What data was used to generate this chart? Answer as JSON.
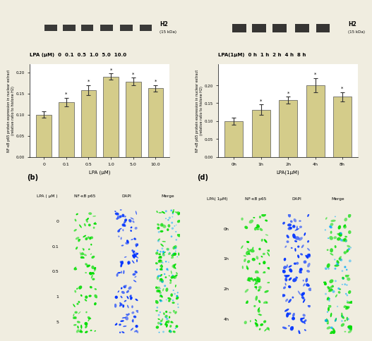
{
  "left_bar": {
    "categories": [
      "0",
      "0.1",
      "0.5",
      "1.0",
      "5.0",
      "10.0"
    ],
    "values": [
      0.1,
      0.13,
      0.158,
      0.19,
      0.178,
      0.162
    ],
    "errors": [
      0.008,
      0.01,
      0.012,
      0.007,
      0.009,
      0.008
    ],
    "bar_color": "#d4cc8a",
    "xlabel": "LPA (μM)",
    "ylabel": "NF-κB p65 protein expression in nuclear extract\n(relative ratio to histone H2)",
    "ylim": [
      0.0,
      0.22
    ],
    "yticks": [
      0.0,
      0.05,
      0.1,
      0.15,
      0.2
    ],
    "star_indices": [
      1,
      2,
      3,
      4,
      5
    ]
  },
  "right_bar": {
    "categories": [
      "0h",
      "1h",
      "2h",
      "4h",
      "8h"
    ],
    "values": [
      0.1,
      0.132,
      0.158,
      0.2,
      0.168
    ],
    "errors": [
      0.01,
      0.014,
      0.01,
      0.02,
      0.013
    ],
    "bar_color": "#d4cc8a",
    "xlabel": "LPA(1μM)",
    "ylabel": "NF-κB p65 protein expression in nuclear extract\n(relative ratio to histone H2)",
    "ylim": [
      0.0,
      0.26
    ],
    "yticks": [
      0.0,
      0.05,
      0.1,
      0.15,
      0.2
    ],
    "star_indices": [
      1,
      2,
      3,
      4
    ]
  },
  "left_blot_label": "LPA (μM)  0  0.1  0.5  1.0  5.0  10.0",
  "right_blot_label": "LPA(1μM)  0 h  1 h  2 h  4 h  8 h",
  "left_micro_header": [
    "LPA ( μM )",
    "NF-κB p65",
    "DAPI",
    "Merge"
  ],
  "left_micro_rows": [
    "0",
    "0.1",
    "0.5",
    "1",
    "5"
  ],
  "right_micro_header": [
    "LPA( 1μM)",
    "NF-κB p65",
    "DAPI",
    "Merge"
  ],
  "right_micro_rows": [
    "0h",
    "1h",
    "2h",
    "4h"
  ],
  "bg_color": "#f0ede0",
  "blot_bg": "#a0a0a0",
  "chart_bg": "#ffffff"
}
